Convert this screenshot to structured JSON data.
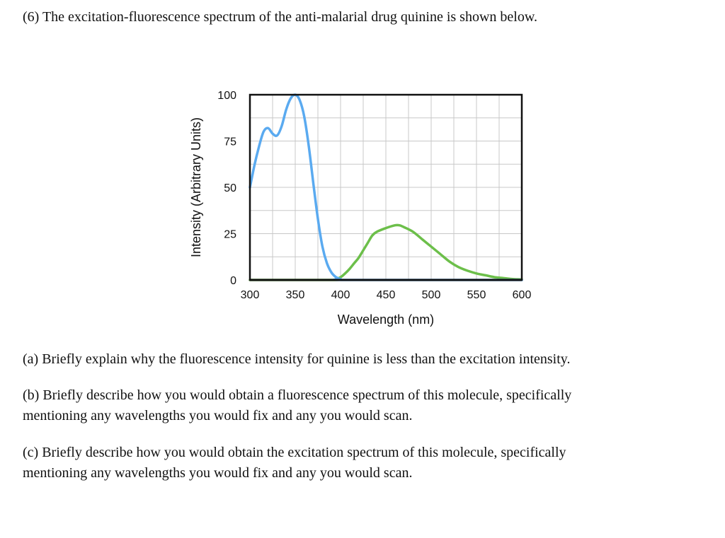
{
  "questions": {
    "intro": "(6) The excitation-fluorescence spectrum of the anti-malarial drug quinine is shown below.",
    "a": "(a) Briefly explain why the fluorescence intensity for quinine is less than the excitation intensity.",
    "b_line1": "(b) Briefly describe how you would obtain a fluorescence spectrum of this molecule, specifically",
    "b_line2": "mentioning any wavelengths you would fix and any you would scan.",
    "c_line1": "(c) Briefly describe how you would obtain the excitation spectrum of this molecule, specifically",
    "c_line2": "mentioning any wavelengths you would fix and any you would scan."
  },
  "chart_data": {
    "type": "line",
    "xlabel": "Wavelength (nm)",
    "ylabel": "Intensity (Arbitrary Units)",
    "xlim": [
      300,
      600
    ],
    "ylim": [
      0,
      100
    ],
    "x_ticks": [
      "300",
      "350",
      "400",
      "450",
      "500",
      "550",
      "600"
    ],
    "y_ticks": [
      "0",
      "25",
      "50",
      "75",
      "100"
    ],
    "grid": true,
    "colors": {
      "excitation": "#5aaaf0",
      "fluorescence": "#6cbf4a",
      "grid": "#c8c8c8",
      "frame": "#111111"
    },
    "series": [
      {
        "color_key": "excitation",
        "points": [
          [
            300,
            50
          ],
          [
            305,
            62
          ],
          [
            310,
            72
          ],
          [
            315,
            80
          ],
          [
            320,
            82
          ],
          [
            325,
            79
          ],
          [
            330,
            78
          ],
          [
            335,
            83
          ],
          [
            340,
            92
          ],
          [
            345,
            98
          ],
          [
            350,
            100
          ],
          [
            355,
            97
          ],
          [
            360,
            88
          ],
          [
            365,
            72
          ],
          [
            370,
            52
          ],
          [
            375,
            33
          ],
          [
            380,
            18
          ],
          [
            385,
            9
          ],
          [
            390,
            4
          ],
          [
            395,
            1.5
          ],
          [
            400,
            0.5
          ],
          [
            410,
            0
          ],
          [
            600,
            0
          ]
        ]
      },
      {
        "color_key": "fluorescence",
        "points": [
          [
            300,
            0
          ],
          [
            390,
            0
          ],
          [
            395,
            0.5
          ],
          [
            400,
            1.5
          ],
          [
            405,
            3.5
          ],
          [
            410,
            6
          ],
          [
            415,
            9
          ],
          [
            420,
            12
          ],
          [
            425,
            16
          ],
          [
            430,
            20
          ],
          [
            435,
            24
          ],
          [
            440,
            26
          ],
          [
            450,
            28
          ],
          [
            460,
            29.5
          ],
          [
            465,
            29.5
          ],
          [
            470,
            28.5
          ],
          [
            480,
            26
          ],
          [
            490,
            22
          ],
          [
            500,
            18
          ],
          [
            510,
            14
          ],
          [
            520,
            10
          ],
          [
            530,
            7
          ],
          [
            540,
            5
          ],
          [
            550,
            3.5
          ],
          [
            560,
            2.5
          ],
          [
            570,
            1.5
          ],
          [
            580,
            1
          ],
          [
            590,
            0.5
          ],
          [
            600,
            0.3
          ]
        ]
      }
    ]
  }
}
